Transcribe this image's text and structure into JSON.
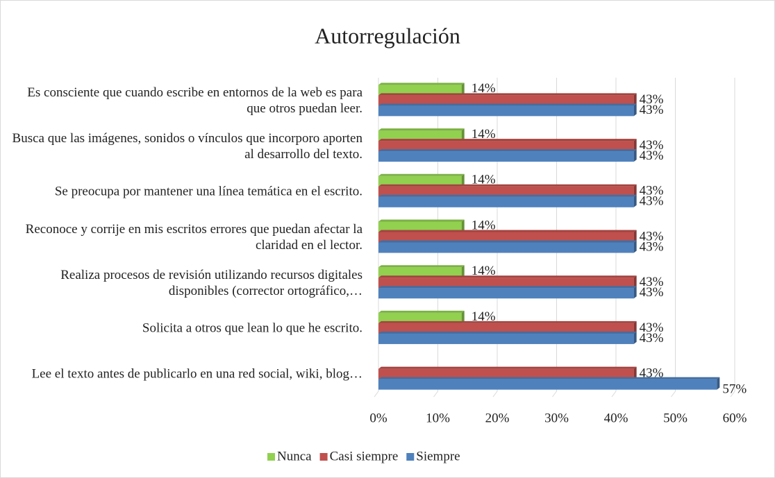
{
  "chart_data": {
    "type": "hbar",
    "title": "Autorregulación",
    "categories": [
      "Es consciente que cuando escribe en entornos de la web es para que otros puedan leer.",
      "Busca que las imágenes, sonidos o vínculos que incorporo aporten al desarrollo del texto.",
      "Se preocupa por mantener una línea temática en el escrito.",
      "Reconoce y corrije en mis escritos errores que puedan afectar la claridad en el lector.",
      "Realiza procesos de revisión utilizando recursos digitales disponibles (corrector ortográfico,…",
      "Solicita a otros que lean lo que he escrito.",
      "Lee el texto antes de publicarlo en una red social, wiki, blog…"
    ],
    "series": [
      {
        "name": "Nunca",
        "color": "#92d050",
        "values": [
          14,
          14,
          14,
          14,
          14,
          14,
          null
        ],
        "value_labels": [
          "14%",
          "14%",
          "14%",
          "14%",
          "14%",
          "14%",
          null
        ]
      },
      {
        "name": "Casi siempre",
        "color": "#c0504d",
        "values": [
          43,
          43,
          43,
          43,
          43,
          43,
          43
        ],
        "value_labels": [
          "43%",
          "43%",
          "43%",
          "43%",
          "43%",
          "43%",
          "43%"
        ]
      },
      {
        "name": "Siempre",
        "color": "#4f81bd",
        "values": [
          43,
          43,
          43,
          43,
          43,
          43,
          57
        ],
        "value_labels": [
          "43%",
          "43%",
          "43%",
          "43%",
          "43%",
          "43%",
          "57%"
        ]
      }
    ],
    "xlim": [
      0,
      60
    ],
    "xticks": [
      {
        "value": 0,
        "label": "0%"
      },
      {
        "value": 10,
        "label": "10%"
      },
      {
        "value": 20,
        "label": "20%"
      },
      {
        "value": 30,
        "label": "30%"
      },
      {
        "value": 40,
        "label": "40%"
      },
      {
        "value": 50,
        "label": "50%"
      },
      {
        "value": 60,
        "label": "60%"
      }
    ],
    "grid": true,
    "legend": "bottom"
  }
}
